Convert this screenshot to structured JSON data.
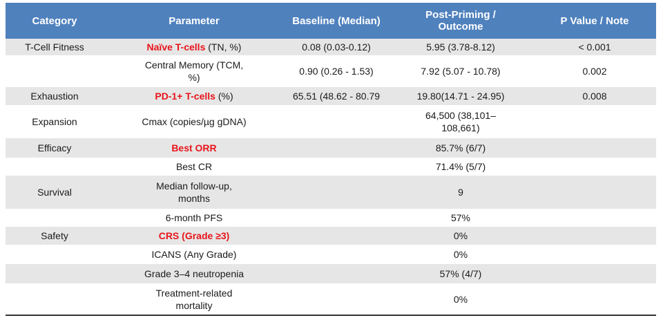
{
  "table": {
    "header": {
      "category": "Category",
      "parameter": "Parameter",
      "baseline": "Baseline (Median)",
      "post": "Post-Priming / Outcome",
      "p": "P Value / Note"
    },
    "rows": [
      {
        "category": "T-Cell Fitness",
        "parameter": {
          "emphasis": "Naïve T-cells",
          "rest": "(TN, %)"
        },
        "baseline": "0.08 (0.03-0.12)",
        "post": "5.95 (3.78-8.12)",
        "p": "< 0.001"
      },
      {
        "parameter": "Central Memory (TCM, %)",
        "baseline": "0.90 (0.26 - 1.53)",
        "post": "7.92 (5.07 - 10.78)",
        "p": "0.002"
      },
      {
        "category": "Exhaustion",
        "parameter": {
          "emphasis": "PD-1+ T-cells",
          "rest": "(%)"
        },
        "baseline": "65.51 (48.62 - 80.79",
        "post": "19.80(14.71 - 24.95)",
        "p": "0.008"
      },
      {
        "category": "Expansion",
        "parameter": "Cmax (copies/µg gDNA)",
        "post": "64,500 (38,101–108,661)"
      },
      {
        "category": "Efficacy",
        "parameter": {
          "emphasis": "Best ORR"
        },
        "post": "85.7% (6/7)"
      },
      {
        "parameter": "Best CR",
        "post": "71.4% (5/7)"
      },
      {
        "category": "Survival",
        "parameter": "Median follow-up, months",
        "post": "9"
      },
      {
        "parameter": "6-month PFS",
        "post": "57%"
      },
      {
        "category": "Safety",
        "parameter": {
          "emphasis": "CRS (Grade ≥3)"
        },
        "post": "0%"
      },
      {
        "parameter": "ICANS (Any Grade)",
        "post": "0%"
      },
      {
        "parameter": "Grade 3–4 neutropenia",
        "post": "57% (4/7)"
      },
      {
        "parameter": "Treatment-related mortality",
        "post": "0%"
      }
    ]
  }
}
